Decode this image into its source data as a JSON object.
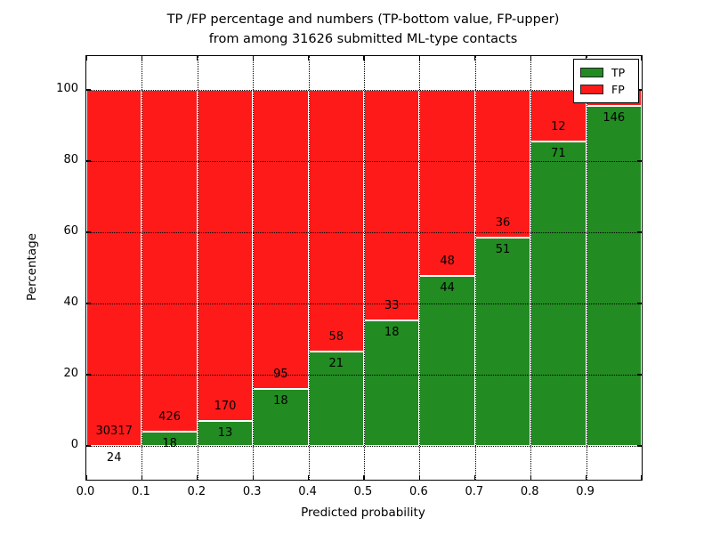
{
  "chart_data": {
    "type": "bar",
    "stacked": true,
    "title_line1": "TP /FP percentage and numbers (TP-bottom value, FP-upper)",
    "title_line2": "from among 31626 submitted ML-type contacts",
    "xlabel": "Predicted probability",
    "ylabel": "Percentage",
    "x_ticks": [
      "0.0",
      "0.1",
      "0.2",
      "0.3",
      "0.4",
      "0.5",
      "0.6",
      "0.7",
      "0.8",
      "0.9"
    ],
    "y_ticks": [
      0,
      20,
      40,
      60,
      80,
      100
    ],
    "xlim": [
      0.0,
      1.0
    ],
    "ylim": [
      -9.5,
      109.5
    ],
    "grid": "dotted, drawn above bars",
    "legend_position": "upper right",
    "colors": {
      "tp": "#228b22",
      "fp": "#ff1a1a"
    },
    "legend": [
      {
        "label": "TP",
        "color": "#228b22"
      },
      {
        "label": "FP",
        "color": "#ff1a1a"
      }
    ],
    "bars": [
      {
        "x0": 0.0,
        "x1": 0.1,
        "tp_count": 24,
        "fp_count": 30317,
        "tp_pct": 0.08,
        "fp_top_pct": 100
      },
      {
        "x0": 0.1,
        "x1": 0.2,
        "tp_count": 18,
        "fp_count": 426,
        "tp_pct": 4.05,
        "fp_top_pct": 100
      },
      {
        "x0": 0.2,
        "x1": 0.3,
        "tp_count": 13,
        "fp_count": 170,
        "tp_pct": 7.1,
        "fp_top_pct": 100
      },
      {
        "x0": 0.3,
        "x1": 0.4,
        "tp_count": 18,
        "fp_count": 95,
        "tp_pct": 15.93,
        "fp_top_pct": 100
      },
      {
        "x0": 0.4,
        "x1": 0.5,
        "tp_count": 21,
        "fp_count": 58,
        "tp_pct": 26.58,
        "fp_top_pct": 100
      },
      {
        "x0": 0.5,
        "x1": 0.6,
        "tp_count": 18,
        "fp_count": 33,
        "tp_pct": 35.29,
        "fp_top_pct": 100
      },
      {
        "x0": 0.6,
        "x1": 0.7,
        "tp_count": 44,
        "fp_count": 48,
        "tp_pct": 47.83,
        "fp_top_pct": 100
      },
      {
        "x0": 0.7,
        "x1": 0.8,
        "tp_count": 51,
        "fp_count": 36,
        "tp_pct": 58.62,
        "fp_top_pct": 100
      },
      {
        "x0": 0.8,
        "x1": 0.9,
        "tp_count": 71,
        "fp_count": 12,
        "tp_pct": 85.54,
        "fp_top_pct": 100
      },
      {
        "x0": 0.9,
        "x1": 1.0,
        "tp_count": 146,
        "fp_count": null,
        "tp_pct": 95.5,
        "fp_top_pct": 100
      }
    ]
  }
}
